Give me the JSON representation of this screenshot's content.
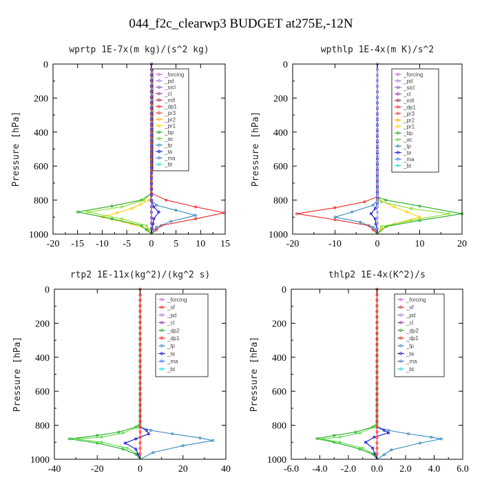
{
  "figure_title": "044_f2c_clearwp3  BUDGET at275E,-12N",
  "chart_data": [
    {
      "type": "line",
      "title": "wprtp   1E-7x(m kg)/(s^2 kg)",
      "ylabel": "Pressure [hPa]",
      "xlim": [
        -20,
        15
      ],
      "xticks": [
        -20,
        -15,
        -10,
        -5,
        0,
        5,
        10,
        15
      ],
      "ylim": [
        1000,
        0
      ],
      "yticks": [
        0,
        200,
        400,
        600,
        800,
        1000
      ],
      "legend_position": "top-right",
      "legend": [
        "_forcing",
        "_pd",
        "_sicl",
        "_cl",
        "_mfl",
        "_dp1",
        "_pr3",
        "_pr2",
        "_pr1",
        "_bp",
        "_ac",
        "_tp",
        "_ta",
        "_ma",
        "_bt"
      ],
      "series": [
        {
          "name": "_pr1",
          "color": "#ffcc00",
          "points": [
            [
              0,
              0
            ],
            [
              0,
              760
            ],
            [
              -0.5,
              800
            ],
            [
              -4,
              850
            ],
            [
              -10,
              900
            ],
            [
              -4,
              940
            ],
            [
              -1,
              970
            ],
            [
              0,
              1000
            ]
          ]
        },
        {
          "name": "_bp",
          "color": "#22aa22",
          "points": [
            [
              0,
              0
            ],
            [
              0,
              760
            ],
            [
              -2,
              800
            ],
            [
              -8,
              835
            ],
            [
              -15,
              870
            ],
            [
              -8,
              910
            ],
            [
              -2,
              950
            ],
            [
              0,
              1000
            ]
          ]
        },
        {
          "name": "_ac",
          "color": "#88dd22",
          "points": [
            [
              0,
              0
            ],
            [
              0,
              760
            ],
            [
              -1.5,
              800
            ],
            [
              -6,
              840
            ],
            [
              -13,
              870
            ],
            [
              -6,
              910
            ],
            [
              -1,
              950
            ],
            [
              0,
              1000
            ]
          ]
        },
        {
          "name": "_dp1",
          "color": "#ee2222",
          "points": [
            [
              0,
              0
            ],
            [
              0,
              760
            ],
            [
              3,
              800
            ],
            [
              9,
              840
            ],
            [
              14.8,
              875
            ],
            [
              9,
              910
            ],
            [
              2,
              950
            ],
            [
              0,
              1000
            ]
          ]
        },
        {
          "name": "_tp",
          "color": "#3388bb",
          "points": [
            [
              0,
              0
            ],
            [
              0,
              800
            ],
            [
              1,
              830
            ],
            [
              5,
              860
            ],
            [
              9,
              890
            ],
            [
              4,
              925
            ],
            [
              1,
              960
            ],
            [
              0,
              1000
            ]
          ]
        },
        {
          "name": "_ta",
          "color": "#1111cc",
          "points": [
            [
              0,
              0
            ],
            [
              0,
              800
            ],
            [
              0.5,
              840
            ],
            [
              1.5,
              870
            ],
            [
              0.5,
              910
            ],
            [
              0,
              1000
            ]
          ]
        },
        {
          "name": "_forcing",
          "color": "#000000",
          "points": [
            [
              0,
              0
            ],
            [
              0,
              1000
            ]
          ]
        },
        {
          "name": "_sicl",
          "color": "#9955cc",
          "points": [
            [
              0,
              0
            ],
            [
              0,
              1000
            ]
          ]
        }
      ]
    },
    {
      "type": "line",
      "title": "wpthlp   1E-4x(m K)/s^2",
      "ylabel": "Pressure [hPa]",
      "xlim": [
        -20,
        20
      ],
      "xticks": [
        -20,
        -10,
        0,
        10,
        20
      ],
      "ylim": [
        1000,
        0
      ],
      "yticks": [
        0,
        200,
        400,
        600,
        800,
        1000
      ],
      "legend_position": "top-right",
      "legend": [
        "_forcing",
        "_pd",
        "_sicl",
        "_cl",
        "_mfl",
        "_dp1",
        "_pr3",
        "_pr2",
        "_pr1",
        "_bp",
        "_ac",
        "_tp",
        "_ta",
        "_ma",
        "_bt"
      ],
      "series": [
        {
          "name": "_pr1",
          "color": "#ffcc00",
          "points": [
            [
              0,
              0
            ],
            [
              0,
              780
            ],
            [
              0.5,
              800
            ],
            [
              4,
              840
            ],
            [
              10,
              900
            ],
            [
              4,
              940
            ],
            [
              1,
              970
            ],
            [
              0,
              1000
            ]
          ]
        },
        {
          "name": "_bp",
          "color": "#22aa22",
          "points": [
            [
              0,
              0
            ],
            [
              0,
              780
            ],
            [
              2,
              800
            ],
            [
              10,
              835
            ],
            [
              20,
              880
            ],
            [
              10,
              920
            ],
            [
              2,
              955
            ],
            [
              0,
              1000
            ]
          ]
        },
        {
          "name": "_ac",
          "color": "#88dd22",
          "points": [
            [
              0,
              0
            ],
            [
              0,
              780
            ],
            [
              1,
              810
            ],
            [
              8,
              850
            ],
            [
              17,
              880
            ],
            [
              8,
              920
            ],
            [
              1,
              955
            ],
            [
              0,
              1000
            ]
          ]
        },
        {
          "name": "_dp1",
          "color": "#ee2222",
          "points": [
            [
              0,
              0
            ],
            [
              0,
              780
            ],
            [
              -3,
              810
            ],
            [
              -10,
              845
            ],
            [
              -19,
              880
            ],
            [
              -10,
              915
            ],
            [
              -2,
              950
            ],
            [
              0,
              1000
            ]
          ]
        },
        {
          "name": "_tp",
          "color": "#3388bb",
          "points": [
            [
              0,
              0
            ],
            [
              0,
              800
            ],
            [
              -1,
              830
            ],
            [
              -6,
              870
            ],
            [
              -10,
              900
            ],
            [
              -4,
              930
            ],
            [
              -1,
              960
            ],
            [
              0,
              1000
            ]
          ]
        },
        {
          "name": "_ta",
          "color": "#1111cc",
          "points": [
            [
              0,
              0
            ],
            [
              0,
              820
            ],
            [
              -0.5,
              850
            ],
            [
              -1.5,
              880
            ],
            [
              -0.5,
              910
            ],
            [
              0,
              1000
            ]
          ]
        },
        {
          "name": "_forcing",
          "color": "#cc88cc",
          "points": [
            [
              0,
              0
            ],
            [
              0,
              1000
            ]
          ]
        },
        {
          "name": "_sicl",
          "color": "#9999ee",
          "points": [
            [
              0,
              0
            ],
            [
              0,
              1000
            ]
          ]
        }
      ]
    },
    {
      "type": "line",
      "title": "rtp2   1E-11x(kg^2)/(kg^2 s)",
      "ylabel": "Pressure [hPa]",
      "xlim": [
        -40,
        40
      ],
      "xticks": [
        -40,
        -20,
        0,
        20,
        40
      ],
      "ylim": [
        1000,
        0
      ],
      "yticks": [
        0,
        200,
        400,
        600,
        800,
        1000
      ],
      "legend_position": "top-right",
      "legend": [
        "_forcing",
        "_sf",
        "_pd",
        "_cl",
        "_dp2",
        "_dp1",
        "_tp",
        "_ta",
        "_ma",
        "_bt"
      ],
      "series": [
        {
          "name": "_dp2",
          "color": "#22aa22",
          "points": [
            [
              0,
              0
            ],
            [
              0,
              790
            ],
            [
              -2,
              810
            ],
            [
              -10,
              840
            ],
            [
              -20,
              860
            ],
            [
              -33,
              880
            ],
            [
              -20,
              905
            ],
            [
              -8,
              940
            ],
            [
              -2,
              970
            ],
            [
              0,
              1000
            ]
          ]
        },
        {
          "name": "_dp1",
          "color": "#55dd44",
          "points": [
            [
              0,
              0
            ],
            [
              0,
              790
            ],
            [
              -1,
              810
            ],
            [
              -8,
              845
            ],
            [
              -18,
              870
            ],
            [
              -30,
              880
            ],
            [
              -18,
              900
            ],
            [
              -6,
              935
            ],
            [
              -1,
              970
            ],
            [
              0,
              1000
            ]
          ]
        },
        {
          "name": "_tp",
          "color": "#3388bb",
          "points": [
            [
              0,
              0
            ],
            [
              0,
              810
            ],
            [
              5,
              830
            ],
            [
              15,
              850
            ],
            [
              28,
              875
            ],
            [
              34,
              890
            ],
            [
              20,
              920
            ],
            [
              6,
              960
            ],
            [
              0,
              1000
            ]
          ]
        },
        {
          "name": "_ta",
          "color": "#1111cc",
          "points": [
            [
              0,
              0
            ],
            [
              0,
              810
            ],
            [
              3,
              830
            ],
            [
              4,
              850
            ],
            [
              -2,
              880
            ],
            [
              -7,
              905
            ],
            [
              -2,
              940
            ],
            [
              0,
              1000
            ]
          ]
        },
        {
          "name": "_cl",
          "color": "#eecc00",
          "points": [
            [
              0,
              0
            ],
            [
              0,
              1000
            ]
          ]
        },
        {
          "name": "_forcing",
          "color": "#ff3333",
          "points": [
            [
              0,
              0
            ],
            [
              0,
              1000
            ]
          ]
        }
      ]
    },
    {
      "type": "line",
      "title": "thlp2   1E-4x(K^2)/s",
      "ylabel": "Pressure [hPa]",
      "xlim": [
        -6,
        6
      ],
      "xticks": [
        -6,
        -4,
        -2,
        0,
        2,
        4,
        6
      ],
      "xticklabels": [
        "-6.0",
        "-4.0",
        "-2.0",
        "0.0",
        "2.0",
        "4.0",
        "6.0"
      ],
      "ylim": [
        1000,
        0
      ],
      "yticks": [
        0,
        200,
        400,
        600,
        800,
        1000
      ],
      "legend_position": "top-right",
      "legend": [
        "_forcing",
        "_sf",
        "_pd",
        "_cl",
        "_dp2",
        "_dp1",
        "_tp",
        "_ta",
        "_ma",
        "_bt"
      ],
      "series": [
        {
          "name": "_dp2",
          "color": "#22aa22",
          "points": [
            [
              0,
              0
            ],
            [
              0,
              790
            ],
            [
              -0.3,
              810
            ],
            [
              -1.5,
              840
            ],
            [
              -3,
              860
            ],
            [
              -4.2,
              878
            ],
            [
              -3,
              900
            ],
            [
              -1.2,
              940
            ],
            [
              -0.3,
              970
            ],
            [
              0,
              1000
            ]
          ]
        },
        {
          "name": "_dp1",
          "color": "#55dd44",
          "points": [
            [
              0,
              0
            ],
            [
              0,
              790
            ],
            [
              -0.2,
              810
            ],
            [
              -1.2,
              845
            ],
            [
              -2.6,
              870
            ],
            [
              -3.9,
              880
            ],
            [
              -2.6,
              900
            ],
            [
              -1,
              935
            ],
            [
              -0.2,
              970
            ],
            [
              0,
              1000
            ]
          ]
        },
        {
          "name": "_tp",
          "color": "#3388bb",
          "points": [
            [
              0,
              0
            ],
            [
              0,
              810
            ],
            [
              0.8,
              830
            ],
            [
              2.2,
              850
            ],
            [
              3.8,
              870
            ],
            [
              4.5,
              880
            ],
            [
              3,
              905
            ],
            [
              1,
              945
            ],
            [
              0,
              1000
            ]
          ]
        },
        {
          "name": "_ta",
          "color": "#1111cc",
          "points": [
            [
              0,
              0
            ],
            [
              0,
              810
            ],
            [
              0.5,
              830
            ],
            [
              0.8,
              845
            ],
            [
              -0.2,
              870
            ],
            [
              -0.8,
              900
            ],
            [
              -0.3,
              935
            ],
            [
              0,
              1000
            ]
          ]
        },
        {
          "name": "_cl",
          "color": "#eecc00",
          "points": [
            [
              0,
              0
            ],
            [
              0,
              1000
            ]
          ]
        },
        {
          "name": "_forcing",
          "color": "#ff3333",
          "points": [
            [
              0,
              0
            ],
            [
              0,
              1000
            ]
          ]
        }
      ]
    }
  ]
}
